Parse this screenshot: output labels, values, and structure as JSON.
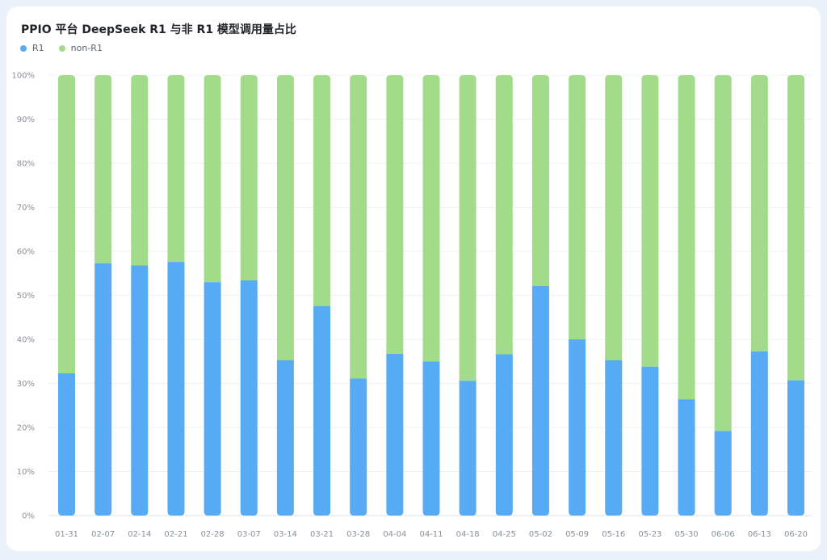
{
  "chart_data": {
    "type": "bar",
    "stacked": true,
    "title": "PPIO 平台 DeepSeek R1 与非 R1 模型调用量占比",
    "categories": [
      "01-31",
      "02-07",
      "02-14",
      "02-21",
      "02-28",
      "03-07",
      "03-14",
      "03-21",
      "03-28",
      "04-04",
      "04-11",
      "04-18",
      "04-25",
      "05-02",
      "05-09",
      "05-16",
      "05-23",
      "05-30",
      "06-06",
      "06-13",
      "06-20"
    ],
    "series": [
      {
        "name": "R1",
        "color": "#57abf5",
        "values": [
          32.3,
          57.3,
          56.8,
          57.6,
          53.0,
          53.4,
          35.3,
          47.6,
          31.1,
          36.7,
          35.0,
          30.6,
          36.6,
          52.1,
          40.0,
          35.3,
          33.8,
          26.4,
          19.2,
          37.3,
          30.7
        ]
      },
      {
        "name": "non-R1",
        "color": "#a2dc8a",
        "values": [
          67.7,
          42.7,
          43.2,
          42.4,
          47.0,
          46.6,
          64.7,
          52.4,
          68.9,
          63.3,
          65.0,
          69.4,
          63.4,
          47.9,
          60.0,
          64.7,
          66.2,
          73.6,
          80.8,
          62.7,
          69.3
        ]
      }
    ],
    "yticks": [
      "0%",
      "10%",
      "20%",
      "30%",
      "40%",
      "50%",
      "60%",
      "70%",
      "80%",
      "90%",
      "100%"
    ],
    "ylim": [
      0,
      100
    ],
    "grid": true,
    "legend_position": "top-left"
  }
}
